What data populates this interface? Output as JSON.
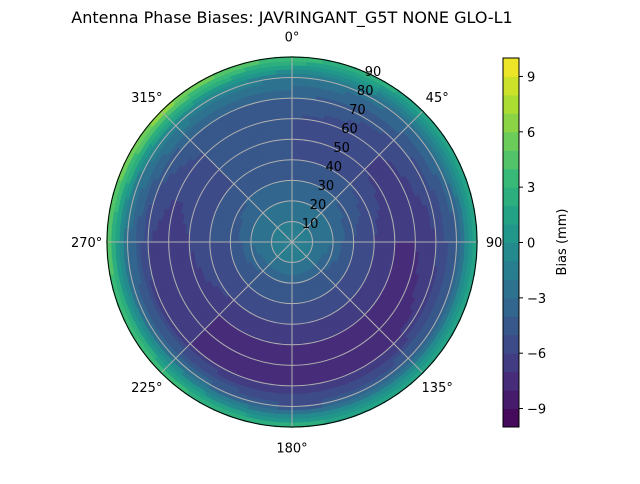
{
  "chart_data": {
    "type": "heatmap",
    "subtype": "polar-contour",
    "title": "Antenna Phase Biases: JAVRINGANT_G5T  NONE GLO-L1",
    "theta_direction": "clockwise",
    "theta_zero": "top",
    "theta_tick_labels": [
      "0°",
      "45°",
      "90°",
      "135°",
      "180°",
      "225°",
      "270°",
      "315°"
    ],
    "r_tick_labels": [
      "10",
      "20",
      "30",
      "40",
      "50",
      "60",
      "70",
      "80",
      "90"
    ],
    "r_range": [
      0,
      90
    ],
    "grid": true,
    "colormap": "viridis",
    "colorbar": {
      "label": "Bias (mm)",
      "range": [
        -10,
        10
      ],
      "level_step": 1,
      "tick_labels": [
        "−9",
        "−6",
        "−3",
        "0",
        "3",
        "6",
        "9"
      ],
      "ticks": [
        -9,
        -6,
        -3,
        0,
        3,
        6,
        9
      ]
    },
    "azimuths": [
      0,
      45,
      90,
      135,
      180,
      225,
      270,
      315
    ],
    "zeniths": [
      0,
      10,
      20,
      30,
      40,
      50,
      60,
      70,
      80,
      90
    ],
    "bias_mm": [
      [
        -1,
        -1,
        -1,
        -1,
        -1,
        -1,
        -1,
        -1
      ],
      [
        -2,
        -2,
        -2,
        -2,
        -2,
        -2,
        -2,
        -2
      ],
      [
        -3,
        -3,
        -3,
        -4,
        -4,
        -4,
        -3,
        -3
      ],
      [
        -4,
        -4,
        -5,
        -5,
        -5,
        -5,
        -5,
        -4
      ],
      [
        -5,
        -5,
        -6,
        -6,
        -6,
        -6,
        -5,
        -5
      ],
      [
        -5,
        -6,
        -7,
        -7,
        -7,
        -7,
        -6,
        -5
      ],
      [
        -5,
        -6,
        -7,
        -8,
        -8,
        -7,
        -7,
        -5
      ],
      [
        -4,
        -5,
        -6,
        -7,
        -7,
        -7,
        -6,
        -4
      ],
      [
        -2,
        -3,
        -4,
        -4,
        -5,
        -3,
        -3,
        -1
      ],
      [
        4,
        2,
        2,
        2,
        3,
        4,
        5,
        7
      ]
    ]
  }
}
